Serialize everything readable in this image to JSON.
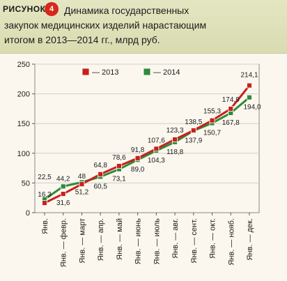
{
  "figure": {
    "label": "РИСУНОК",
    "number": "4",
    "title_line1": "Динамика государственных",
    "title_line2": "закупок медицинских изделий нарастающим",
    "title_line3": "итогом в 2013—2014 гг., млрд руб."
  },
  "colors": {
    "series_2013": "#c8211c",
    "series_2014": "#2e8b3a",
    "grid": "#cfcfcf",
    "badge": "#d6281c",
    "header_bg": "#dfe1b8"
  },
  "chart_data": {
    "type": "line",
    "categories": [
      "Янв.",
      "Янв. — февр.",
      "Янв. — март",
      "Янв. — апр.",
      "Янв. — май",
      "Янв. — июнь",
      "Янв. — июль",
      "Янв. — авг.",
      "Янв. — сент.",
      "Янв. — окт.",
      "Янв. — нояб.",
      "Янв. — дек."
    ],
    "series": [
      {
        "name": "— 2013",
        "values": [
          16.3,
          31.6,
          48,
          64.8,
          78.6,
          91.8,
          107.6,
          123.3,
          138.5,
          155.3,
          174.9,
          214.1
        ],
        "labels": [
          "16,3",
          "31,6",
          "48",
          "64,8",
          "78,6",
          "91,8",
          "107,6",
          "123,3",
          "138,5",
          "155,3",
          "174,9",
          "214,1"
        ]
      },
      {
        "name": "— 2014",
        "values": [
          22.5,
          44.2,
          51.2,
          60.5,
          73.1,
          89.0,
          104.3,
          118.8,
          137.9,
          150.7,
          167.8,
          194.0
        ],
        "labels": [
          "22,5",
          "44,2",
          "51,2",
          "60,5",
          "73,1",
          "89,0",
          "104,3",
          "118,8",
          "137,9",
          "150,7",
          "167,8",
          "194,0"
        ]
      }
    ],
    "ylim": [
      0,
      250
    ],
    "yticks": [
      0,
      50,
      100,
      150,
      200,
      250
    ],
    "grid": true,
    "legend_position": "top-left"
  }
}
